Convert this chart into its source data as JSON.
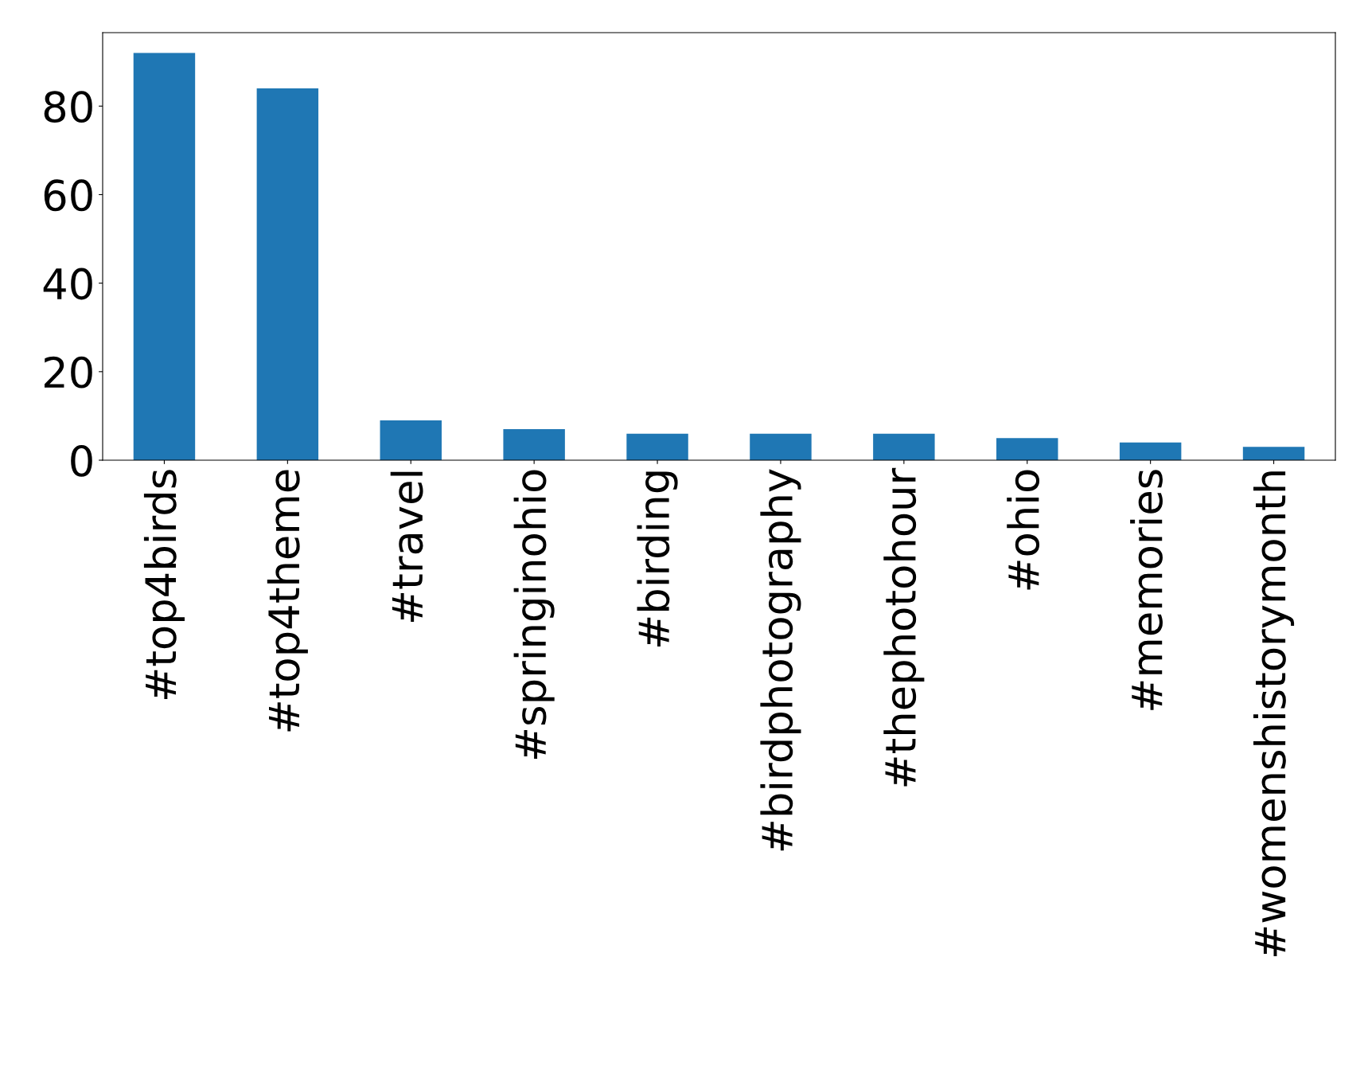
{
  "chart_data": {
    "type": "bar",
    "categories": [
      "#top4birds",
      "#top4theme",
      "#travel",
      "#springinohio",
      "#birding",
      "#birdphotography",
      "#thephotohour",
      "#ohio",
      "#memories",
      "#womenshistorymonth"
    ],
    "values": [
      92,
      84,
      9,
      7,
      6,
      6,
      6,
      5,
      4,
      3
    ],
    "color": "#1f77b4",
    "ylim": [
      0,
      96.6
    ],
    "yticks": [
      0,
      20,
      40,
      60,
      80
    ],
    "grid": false,
    "legend": false
  }
}
